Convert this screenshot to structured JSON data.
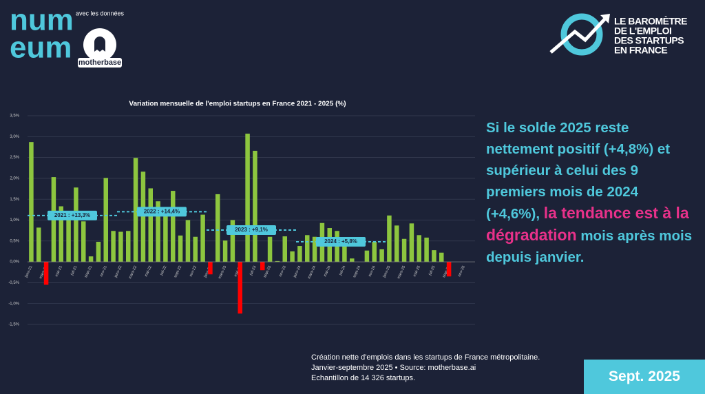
{
  "logo": {
    "line1": "num",
    "line2": "eum",
    "partner_intro": "avec les données",
    "partner": "motherbase"
  },
  "header": {
    "lines": [
      "LE BAROMÈTRE",
      "DE L'EMPLOI",
      "DES STARTUPS",
      "EN FRANCE"
    ]
  },
  "text": {
    "parts": [
      "Si le solde 2025 reste nettement positif (+4,8%) et supérieur à celui des 9 premiers mois de 2024 (+4,6%), ",
      "la tendance est à la dégradation",
      " mois après mois depuis janvier."
    ]
  },
  "footnote": [
    "Création nette d'emplois dans les startups de France métropolitaine.",
    "Janvier-septembre 2025 • Source: motherbase.ai",
    "Echantillon de 14 326 startups."
  ],
  "badge": "Sept. 2025",
  "chart_data": {
    "type": "bar",
    "title": "Variation mensuelle de l'emploi startups en France 2021 - 2025 (%)",
    "categories": [
      "janv-21",
      null,
      "mars-21",
      null,
      "mai-21",
      null,
      "juil-21",
      null,
      "sept-21",
      null,
      "nov-21",
      null,
      "janv-22",
      null,
      "mars-22",
      null,
      "mai-22",
      null,
      "juil-22",
      null,
      "sept-22",
      null,
      "nov-22",
      null,
      "janv-23",
      null,
      "mars-23",
      null,
      "mai-23",
      null,
      "juil-23",
      null,
      "sept-23",
      null,
      "nov-23",
      null,
      "janv-24",
      null,
      "mars-24",
      null,
      "mai-24",
      null,
      "juil-24",
      null,
      "sept-24",
      null,
      "nov-24",
      null,
      "janv-25",
      null,
      "mars-25",
      null,
      "mai-25",
      null,
      "juil-25",
      null,
      "sept-25",
      null,
      "nov-25",
      null
    ],
    "values": [
      2.87,
      0.82,
      -0.55,
      2.03,
      1.33,
      1.15,
      1.78,
      0.97,
      0.13,
      0.48,
      2.01,
      0.74,
      0.72,
      0.74,
      2.49,
      2.16,
      1.76,
      1.45,
      1.14,
      1.7,
      0.63,
      1.0,
      0.6,
      1.13,
      -0.3,
      1.62,
      0.51,
      1.0,
      -1.24,
      3.07,
      2.66,
      -0.2,
      0.6,
      0.02,
      0.61,
      0.25,
      0.38,
      0.64,
      0.6,
      0.93,
      0.81,
      0.74,
      0.45,
      0.08,
      0.0,
      0.27,
      0.48,
      0.3,
      1.11,
      0.87,
      0.55,
      0.92,
      0.64,
      0.58,
      0.28,
      0.22,
      -0.35,
      null,
      null,
      null
    ],
    "color": "#8dc63f",
    "negative_color": "#ff0000",
    "averages": [
      {
        "label": "2021 : +13,3%",
        "value": 1.11
      },
      {
        "label": "2022 : +14,4%",
        "value": 1.2
      },
      {
        "label": "2023 : +9,1%",
        "value": 0.76
      },
      {
        "label": "2024 : +5,8%",
        "value": 0.48
      }
    ],
    "average_color": "#4fc8dc",
    "ylim": [
      -1.5,
      3.5
    ],
    "yticks": [
      {
        "value": -1.5,
        "label": "-1,5%"
      },
      {
        "value": -1,
        "label": "-1,0%"
      },
      {
        "value": -0.5,
        "label": "-0,5%"
      },
      {
        "value": 0,
        "label": "0,0%"
      },
      {
        "value": 0.5,
        "label": "0,5%"
      },
      {
        "value": 1,
        "label": "1,0%"
      },
      {
        "value": 1.5,
        "label": "1,5%"
      },
      {
        "value": 2,
        "label": "2,0%"
      },
      {
        "value": 2.5,
        "label": "2,5%"
      },
      {
        "value": 3,
        "label": "3,0%"
      },
      {
        "value": 3.5,
        "label": "3,5%"
      }
    ],
    "grid": true
  }
}
